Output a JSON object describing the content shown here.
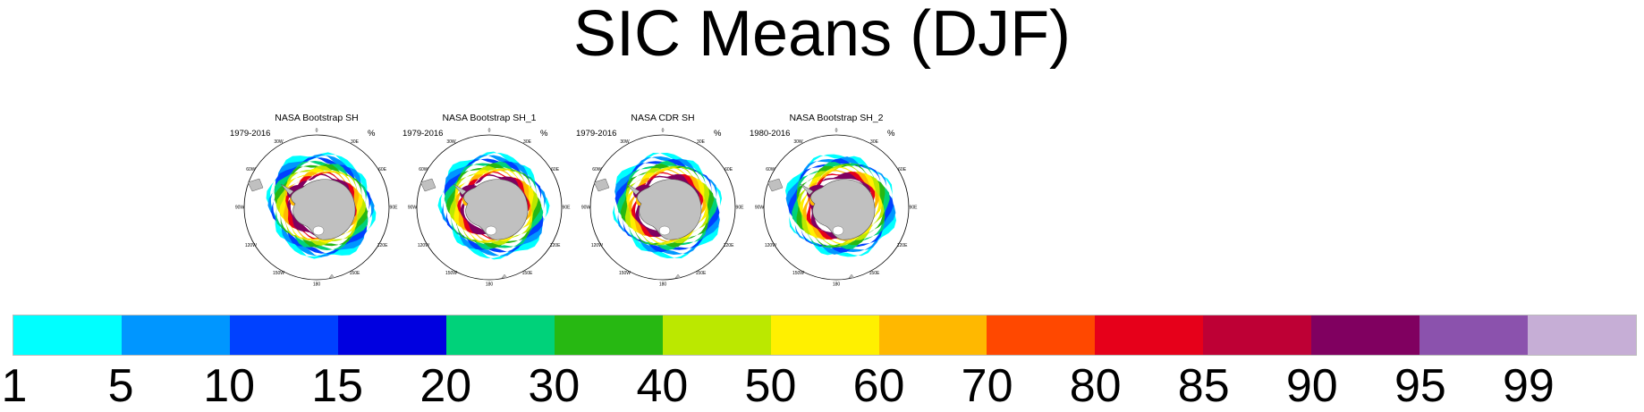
{
  "title": "SIC Means (DJF)",
  "chart_data": {
    "type": "heatmap",
    "title": "SIC Means (DJF)",
    "panels": [
      {
        "title": "NASA Bootstrap SH",
        "period": "1979-2016",
        "units": "%"
      },
      {
        "title": "NASA Bootstrap SH_1",
        "period": "1979-2016",
        "units": "%"
      },
      {
        "title": "NASA CDR SH",
        "period": "1979-2016",
        "units": "%"
      },
      {
        "title": "NASA Bootstrap SH_2",
        "period": "1980-2016",
        "units": "%"
      }
    ],
    "map_labels": [
      "0",
      "30E",
      "60E",
      "90E",
      "120E",
      "150E",
      "180",
      "150W",
      "120W",
      "90W",
      "60W",
      "30W"
    ],
    "colorbar": {
      "levels": [
        "1",
        "5",
        "10",
        "15",
        "20",
        "30",
        "40",
        "50",
        "60",
        "70",
        "80",
        "85",
        "90",
        "95",
        "99"
      ],
      "colors": [
        "#00ffff",
        "#0096ff",
        "#0041ff",
        "#0000e0",
        "#00d27a",
        "#27b812",
        "#bbe800",
        "#fff000",
        "#ffb800",
        "#ff4800",
        "#e6001a",
        "#be0035",
        "#800060",
        "#8b52ad",
        "#c6aed6"
      ]
    }
  }
}
